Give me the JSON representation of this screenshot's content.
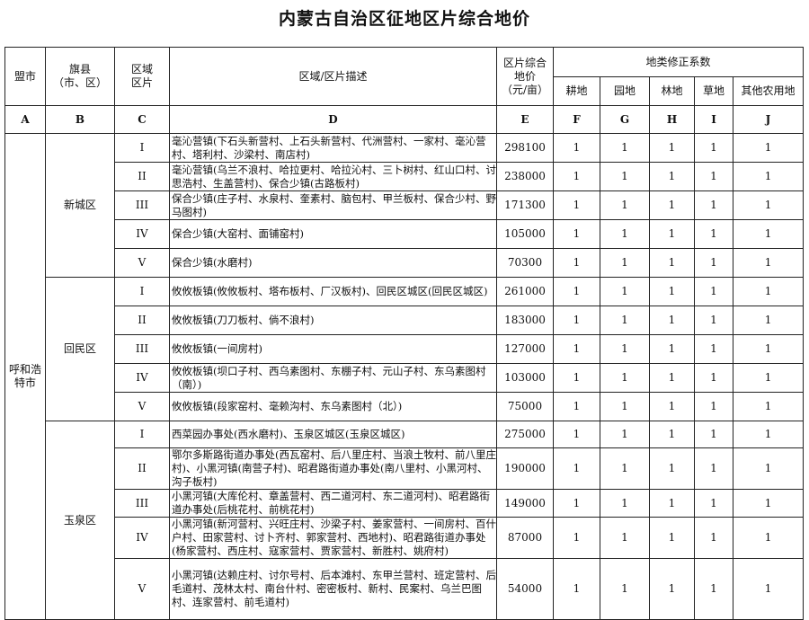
{
  "title": "内蒙古自治区征地区片综合地价",
  "headers": {
    "city": "盟市",
    "county": "旗县\n（市、区）",
    "zone": "区域\n区片",
    "desc": "区域/区片描述",
    "price": "区片综合\n地价\n（元/亩）",
    "coef_group": "地类修正系数",
    "coefs": [
      "耕地",
      "园地",
      "林地",
      "草地",
      "其他农用地"
    ]
  },
  "letters": [
    "A",
    "B",
    "C",
    "D",
    "E",
    "F",
    "G",
    "H",
    "I",
    "J"
  ],
  "city": "呼和浩\n特市",
  "groups": [
    {
      "county": "新城区",
      "rows": [
        {
          "zone": "I",
          "desc": "毫沁营镇(下石头新营村、上石头新营村、代洲营村、一家村、毫沁营村、塔利村、沙梁村、南店村)",
          "price": "298100",
          "coefs": [
            "1",
            "1",
            "1",
            "1",
            "1"
          ]
        },
        {
          "zone": "II",
          "desc": "毫沁营镇(乌兰不浪村、哈拉更村、哈拉沁村、三卜树村、红山口村、讨思浩村、生盖营村)、保合少镇(古路板村)",
          "price": "238000",
          "coefs": [
            "1",
            "1",
            "1",
            "1",
            "1"
          ]
        },
        {
          "zone": "III",
          "desc": "保合少镇(庄子村、水泉村、奎素村、脑包村、甲兰板村、保合少村、野马图村)",
          "price": "171300",
          "coefs": [
            "1",
            "1",
            "1",
            "1",
            "1"
          ]
        },
        {
          "zone": "IV",
          "desc": "保合少镇(大窑村、面铺窑村)",
          "price": "105000",
          "coefs": [
            "1",
            "1",
            "1",
            "1",
            "1"
          ]
        },
        {
          "zone": "V",
          "desc": "保合少镇(水磨村)",
          "price": "70300",
          "coefs": [
            "1",
            "1",
            "1",
            "1",
            "1"
          ]
        }
      ]
    },
    {
      "county": "回民区",
      "rows": [
        {
          "zone": "I",
          "desc": "攸攸板镇(攸攸板村、塔布板村、厂汉板村)、回民区城区(回民区城区)",
          "price": "261000",
          "coefs": [
            "1",
            "1",
            "1",
            "1",
            "1"
          ]
        },
        {
          "zone": "II",
          "desc": "攸攸板镇(刀刀板村、倘不浪村)",
          "price": "183000",
          "coefs": [
            "1",
            "1",
            "1",
            "1",
            "1"
          ]
        },
        {
          "zone": "III",
          "desc": "攸攸板镇(一间房村)",
          "price": "127000",
          "coefs": [
            "1",
            "1",
            "1",
            "1",
            "1"
          ]
        },
        {
          "zone": "IV",
          "desc": "攸攸板镇(坝口子村、西乌素图村、东棚子村、元山子村、东乌素图村（南）)",
          "price": "103000",
          "coefs": [
            "1",
            "1",
            "1",
            "1",
            "1"
          ]
        },
        {
          "zone": "V",
          "desc": "攸攸板镇(段家窑村、毫赖沟村、东乌素图村（北）)",
          "price": "75000",
          "coefs": [
            "1",
            "1",
            "1",
            "1",
            "1"
          ]
        }
      ]
    },
    {
      "county": "玉泉区",
      "rows": [
        {
          "zone": "I",
          "desc": "西菜园办事处(西水磨村)、玉泉区城区(玉泉区城区)",
          "price": "275000",
          "coefs": [
            "1",
            "1",
            "1",
            "1",
            "1"
          ]
        },
        {
          "zone": "II",
          "desc": "鄂尔多斯路街道办事处(西瓦窑村、后八里庄村、当浪土牧村、前八里庄村)、小黑河镇(南营子村)、昭君路街道办事处(南八里村、小黑河村、沟子板村)",
          "price": "190000",
          "coefs": [
            "1",
            "1",
            "1",
            "1",
            "1"
          ]
        },
        {
          "zone": "III",
          "desc": "小黑河镇(大库伦村、章盖营村、西二道河村、东二道河村)、昭君路街道办事处(后桃花村、前桃花村)",
          "price": "149000",
          "coefs": [
            "1",
            "1",
            "1",
            "1",
            "1"
          ]
        },
        {
          "zone": "IV",
          "desc": "小黑河镇(新河营村、兴旺庄村、沙梁子村、姜家营村、一间房村、百什户村、田家营村、讨卜齐村、郭家营村、西地村)、昭君路街道办事处(杨家营村、西庄村、寇家营村、贾家营村、新胜村、姚府村)",
          "price": "87000",
          "coefs": [
            "1",
            "1",
            "1",
            "1",
            "1"
          ]
        },
        {
          "zone": "V",
          "desc": "小黑河镇(达赖庄村、讨尔号村、后本滩村、东甲兰营村、班定营村、后毛道村、茂林太村、南台什村、密密板村、新村、民案村、乌兰巴图村、连家营村、前毛道村)",
          "price": "54000",
          "coefs": [
            "1",
            "1",
            "1",
            "1",
            "1"
          ]
        }
      ]
    }
  ]
}
